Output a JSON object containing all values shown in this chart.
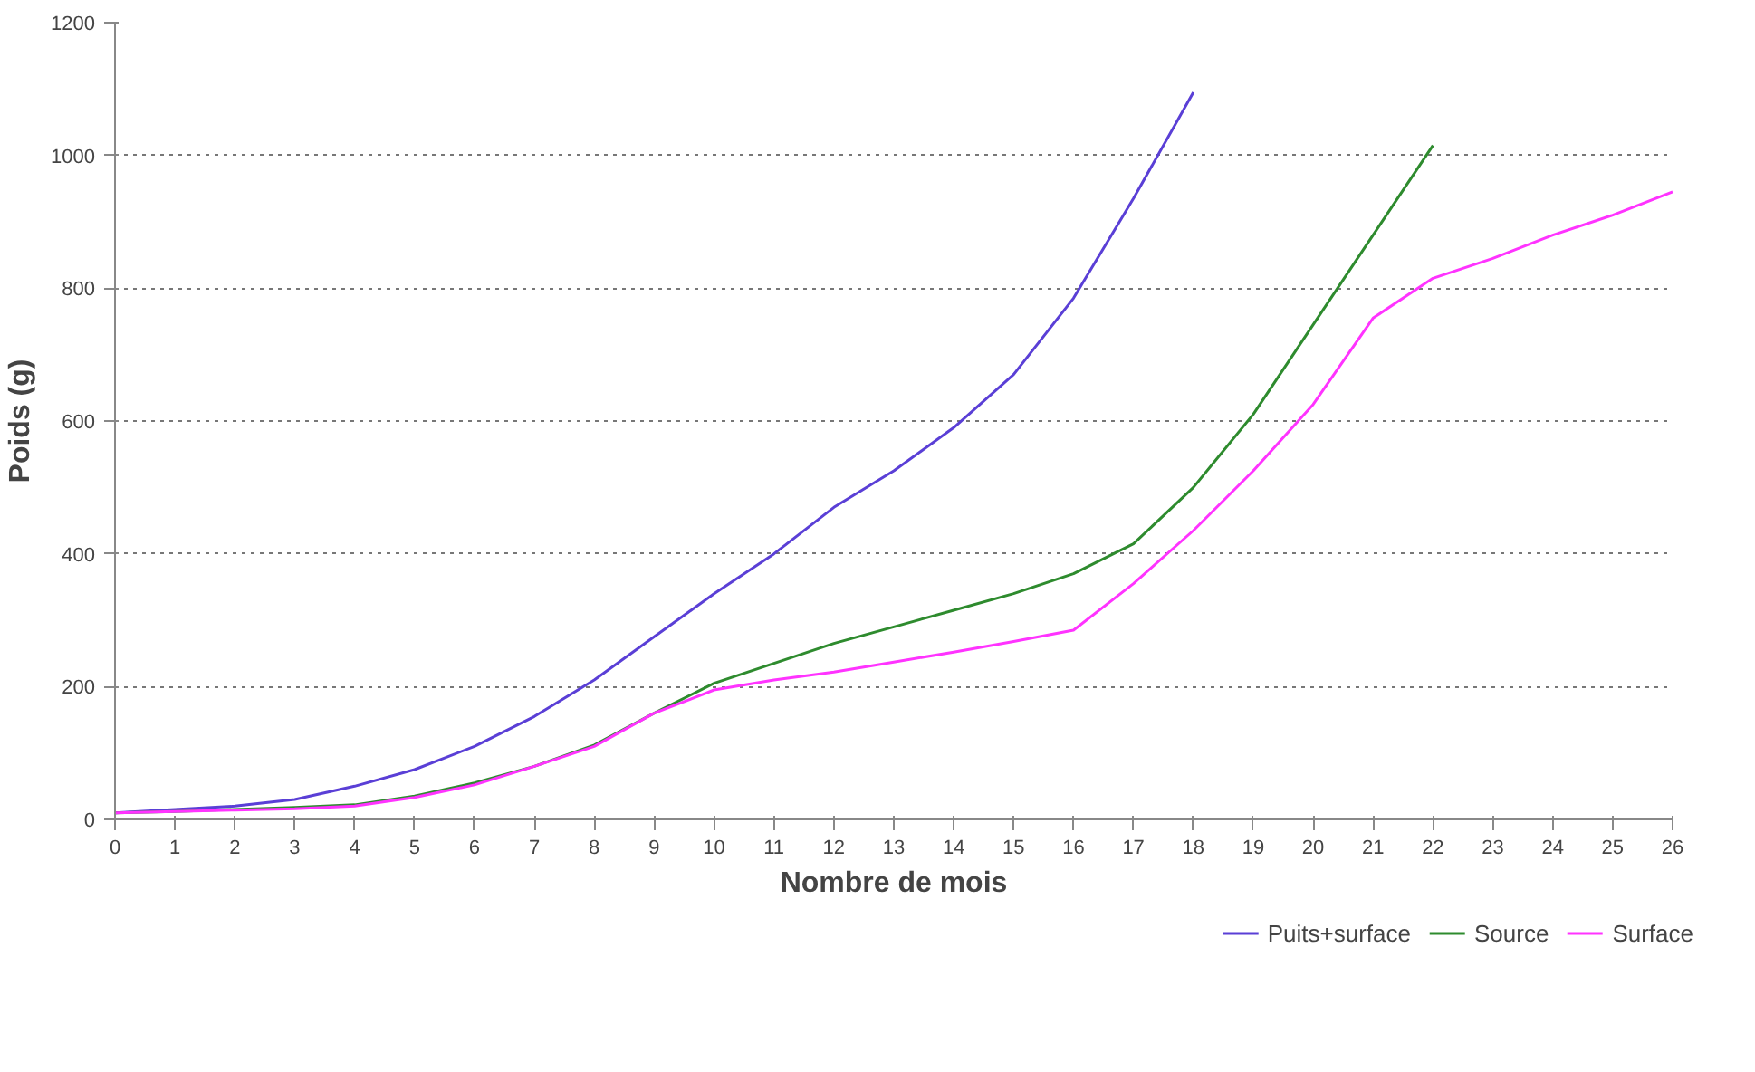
{
  "chart_data": {
    "type": "line",
    "xlabel": "Nombre de mois",
    "ylabel": "Poids (g)",
    "x": [
      0,
      1,
      2,
      3,
      4,
      5,
      6,
      7,
      8,
      9,
      10,
      11,
      12,
      13,
      14,
      15,
      16,
      17,
      18,
      19,
      20,
      21,
      22,
      23,
      24,
      25,
      26
    ],
    "xlim": [
      0,
      26
    ],
    "xticks": [
      0,
      1,
      2,
      3,
      4,
      5,
      6,
      7,
      8,
      9,
      10,
      11,
      12,
      13,
      14,
      15,
      16,
      17,
      18,
      19,
      20,
      21,
      22,
      23,
      24,
      25,
      26
    ],
    "ylim": [
      0,
      1200
    ],
    "yticks": [
      0,
      200,
      400,
      600,
      800,
      1000,
      1200
    ],
    "grid": "y",
    "legend": "bottom right",
    "marker": "none",
    "line_style": "solid",
    "series": [
      {
        "name": "Puits+surface",
        "color": "#5a3fd6",
        "values": [
          10,
          15,
          20,
          30,
          50,
          75,
          110,
          155,
          210,
          275,
          340,
          400,
          470,
          525,
          590,
          670,
          785,
          935,
          1095,
          null,
          null,
          null,
          null,
          null,
          null,
          null,
          null
        ]
      },
      {
        "name": "Source",
        "color": "#2e8b2e",
        "values": [
          10,
          12,
          15,
          18,
          22,
          35,
          55,
          80,
          112,
          160,
          205,
          235,
          265,
          290,
          315,
          340,
          370,
          415,
          500,
          610,
          745,
          880,
          1015,
          null,
          null,
          null,
          null
        ]
      },
      {
        "name": "Surface",
        "color": "#ff33ff",
        "values": [
          10,
          12,
          14,
          16,
          20,
          33,
          52,
          80,
          110,
          160,
          195,
          210,
          222,
          237,
          252,
          268,
          285,
          355,
          435,
          525,
          625,
          755,
          815,
          845,
          880,
          910,
          945
        ]
      }
    ]
  }
}
